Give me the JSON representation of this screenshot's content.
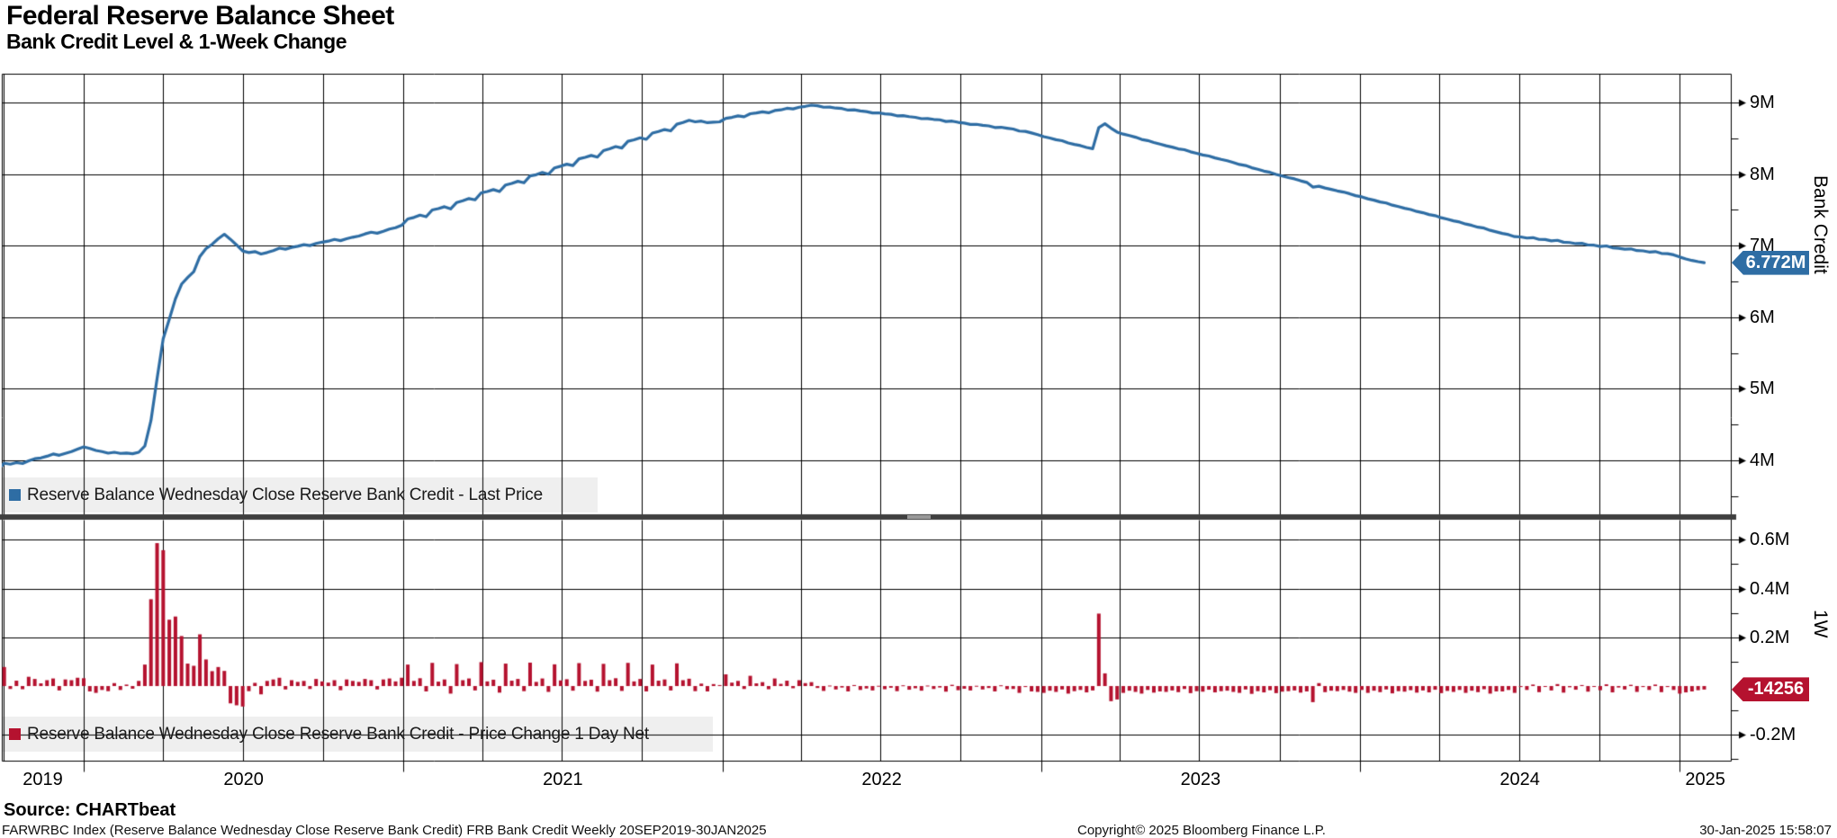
{
  "header": {
    "title": "Federal Reserve Balance Sheet",
    "subtitle": "Bank Credit Level & 1-Week Change"
  },
  "footer": {
    "source": "Source: CHARTbeat",
    "security_info": "FARWRBC Index (Reserve Balance Wednesday Close Reserve Bank Credit) FRB Bank Credit  Weekly 20SEP2019-30JAN2025",
    "copyright": "Copyright© 2025 Bloomberg Finance L.P.",
    "timestamp": "30-Jan-2025 15:58:07"
  },
  "colors": {
    "line_blue": "#2e6da4",
    "bar_red": "#b5122f",
    "badge_blue": "#2e6da4",
    "badge_red": "#b5122f",
    "grid": "#000000",
    "separator": "#3f3f3f"
  },
  "chart_data": {
    "type": [
      "line",
      "bar"
    ],
    "title": "Federal Reserve Balance Sheet",
    "subtitle": "Bank Credit Level & 1-Week Change",
    "x": {
      "freq": "weekly",
      "start_date": "2019-09-25",
      "end_date": "2025-01-29",
      "years": [
        "2019",
        "2020",
        "2021",
        "2022",
        "2023",
        "2024",
        "2025"
      ],
      "grid": "quarterly"
    },
    "panels": [
      {
        "type": "line",
        "name": "Reserve Balance Wednesday Close Reserve Bank Credit - Last Price",
        "axis_title": "Bank Credit",
        "units": "M (millions USD, axis in trillions-equivalent M)",
        "ylim": [
          3.25,
          9.4
        ],
        "yticks": [
          {
            "v": 4,
            "label": "4M"
          },
          {
            "v": 5,
            "label": "5M"
          },
          {
            "v": 6,
            "label": "6M"
          },
          {
            "v": 7,
            "label": "7M"
          },
          {
            "v": 8,
            "label": "8M"
          },
          {
            "v": 9,
            "label": "9M"
          }
        ],
        "last_value": 6.772,
        "last_label": "6.772M"
      },
      {
        "type": "bar",
        "name": "Reserve Balance Wednesday Close Reserve Bank Credit - Price Change 1 Day Net",
        "axis_title": "1W",
        "ylim": [
          -0.31,
          0.68
        ],
        "yticks": [
          {
            "v": -0.2,
            "label": "-0.2M"
          },
          {
            "v": 0.2,
            "label": "0.2M"
          },
          {
            "v": 0.4,
            "label": "0.4M"
          },
          {
            "v": 0.6,
            "label": "0.6M"
          }
        ],
        "last_value": -0.014256,
        "last_label": "-14256"
      }
    ],
    "line_start_level": 3.86,
    "weekly_change_M": [
      0.021,
      0.078,
      -0.012,
      0.022,
      -0.013,
      0.038,
      0.029,
      0.011,
      0.024,
      0.031,
      -0.018,
      0.027,
      0.024,
      0.034,
      0.032,
      -0.022,
      -0.028,
      -0.016,
      -0.021,
      0.012,
      -0.016,
      0.006,
      -0.011,
      0.021,
      0.088,
      0.356,
      0.586,
      0.557,
      0.272,
      0.285,
      0.205,
      0.092,
      0.083,
      0.212,
      0.109,
      0.061,
      0.078,
      0.062,
      -0.071,
      -0.079,
      -0.084,
      -0.021,
      0.013,
      -0.034,
      0.021,
      0.027,
      0.034,
      -0.014,
      0.024,
      0.017,
      0.021,
      -0.012,
      0.029,
      0.019,
      0.014,
      0.024,
      -0.017,
      0.027,
      0.021,
      0.017,
      0.029,
      0.024,
      -0.014,
      0.027,
      0.031,
      0.019,
      0.034,
      0.088,
      0.021,
      0.032,
      -0.022,
      0.095,
      0.018,
      0.027,
      -0.031,
      0.09,
      0.024,
      0.031,
      -0.018,
      0.098,
      0.019,
      0.026,
      -0.027,
      0.092,
      0.022,
      0.029,
      -0.021,
      0.096,
      0.017,
      0.031,
      -0.024,
      0.089,
      0.023,
      0.028,
      -0.019,
      0.094,
      0.021,
      0.026,
      -0.023,
      0.091,
      0.024,
      0.032,
      -0.02,
      0.095,
      0.019,
      0.029,
      -0.022,
      0.088,
      0.022,
      0.027,
      -0.018,
      0.093,
      0.024,
      0.03,
      -0.021,
      0.01,
      -0.022,
      0.008,
      0.004,
      0.048,
      0.014,
      0.021,
      -0.012,
      0.042,
      0.011,
      0.016,
      -0.013,
      0.031,
      0.009,
      0.022,
      -0.009,
      0.024,
      0.012,
      0.016,
      -0.008,
      -0.02,
      0.002,
      -0.014,
      -0.006,
      -0.022,
      0.004,
      -0.016,
      -0.01,
      -0.018,
      0.001,
      -0.013,
      -0.007,
      -0.021,
      0.003,
      -0.015,
      -0.009,
      -0.019,
      0.002,
      -0.012,
      -0.006,
      -0.023,
      0.005,
      -0.017,
      -0.011,
      -0.018,
      0.001,
      -0.014,
      -0.008,
      -0.022,
      0.003,
      -0.013,
      -0.012,
      -0.028,
      -0.004,
      -0.022,
      -0.024,
      -0.028,
      -0.019,
      -0.024,
      -0.014,
      -0.031,
      -0.021,
      -0.016,
      -0.026,
      -0.018,
      0.297,
      0.052,
      -0.062,
      -0.055,
      -0.028,
      -0.019,
      -0.024,
      -0.031,
      -0.016,
      -0.027,
      -0.022,
      -0.024,
      -0.018,
      -0.025,
      -0.012,
      -0.029,
      -0.021,
      -0.023,
      -0.015,
      -0.026,
      -0.021,
      -0.019,
      -0.024,
      -0.028,
      -0.014,
      -0.032,
      -0.021,
      -0.026,
      -0.017,
      -0.029,
      -0.023,
      -0.021,
      -0.018,
      -0.027,
      -0.022,
      -0.066,
      0.012,
      -0.025,
      -0.019,
      -0.021,
      -0.016,
      -0.023,
      -0.028,
      -0.016,
      -0.028,
      -0.019,
      -0.025,
      -0.014,
      -0.03,
      -0.021,
      -0.023,
      -0.017,
      -0.027,
      -0.018,
      -0.026,
      -0.015,
      -0.029,
      -0.02,
      -0.024,
      -0.016,
      -0.028,
      -0.019,
      -0.025,
      -0.013,
      -0.031,
      -0.022,
      -0.022,
      -0.016,
      -0.028,
      -0.004,
      -0.016,
      0.006,
      -0.025,
      -0.002,
      -0.018,
      0.008,
      -0.027,
      -0.005,
      -0.015,
      0.004,
      -0.023,
      -0.003,
      -0.017,
      0.007,
      -0.026,
      -0.006,
      -0.014,
      0.005,
      -0.024,
      -0.004,
      -0.016,
      0.006,
      -0.025,
      -0.004,
      -0.016,
      -0.031,
      -0.026,
      -0.022,
      -0.017,
      -0.014256
    ]
  },
  "legends": [
    {
      "label": "Reserve Balance Wednesday Close Reserve Bank Credit - Last Price",
      "swatch": "blue-square"
    },
    {
      "label": "Reserve Balance Wednesday Close Reserve Bank Credit - Price Change 1 Day Net",
      "swatch": "red-square"
    }
  ]
}
